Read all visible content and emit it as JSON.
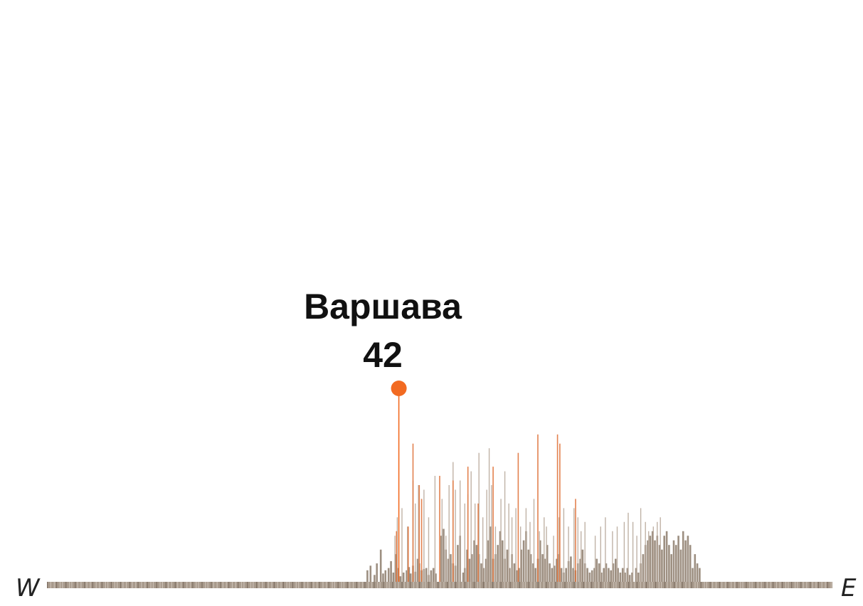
{
  "chart_data": {
    "type": "bar",
    "axis": {
      "left_label": "W",
      "right_label": "E"
    },
    "highlight": {
      "name": "Варшава",
      "value": "42",
      "value_number": 42
    },
    "colors": {
      "bar": "#8c7b6b",
      "bar_light": "#b9aa9c",
      "accent": "#e0743c",
      "highlight": "#f26a21",
      "baseline": "#a89a8c"
    },
    "ylim": [
      0,
      70
    ],
    "bars": [
      [
        0.408,
        2.5
      ],
      [
        0.412,
        3.5
      ],
      [
        0.417,
        1.5
      ],
      [
        0.42,
        4
      ],
      [
        0.425,
        7
      ],
      [
        0.428,
        1.8
      ],
      [
        0.431,
        2.5
      ],
      [
        0.435,
        3
      ],
      [
        0.438,
        4.5
      ],
      [
        0.441,
        2
      ],
      [
        0.444,
        6
      ],
      [
        0.447,
        3
      ],
      [
        0.45,
        1.2
      ],
      [
        0.454,
        2
      ],
      [
        0.458,
        2.5
      ],
      [
        0.461,
        3.2
      ],
      [
        0.463,
        1.8
      ],
      [
        0.466,
        3.5
      ],
      [
        0.469,
        2.2
      ],
      [
        0.472,
        5
      ],
      [
        0.474,
        4
      ],
      [
        0.477,
        2.5
      ],
      [
        0.48,
        2.8
      ],
      [
        0.483,
        3
      ],
      [
        0.486,
        1.5
      ],
      [
        0.489,
        2.5
      ],
      [
        0.492,
        3
      ],
      [
        0.495,
        1.8
      ],
      [
        0.502,
        10
      ],
      [
        0.505,
        11.5
      ],
      [
        0.508,
        7
      ],
      [
        0.511,
        5
      ],
      [
        0.514,
        6
      ],
      [
        0.517,
        4
      ],
      [
        0.52,
        3.5
      ],
      [
        0.523,
        8
      ],
      [
        0.526,
        10
      ],
      [
        0.53,
        2
      ],
      [
        0.532,
        3
      ],
      [
        0.535,
        7
      ],
      [
        0.538,
        5
      ],
      [
        0.541,
        6
      ],
      [
        0.544,
        9
      ],
      [
        0.547,
        8
      ],
      [
        0.55,
        6
      ],
      [
        0.553,
        4
      ],
      [
        0.556,
        3
      ],
      [
        0.559,
        5
      ],
      [
        0.562,
        9
      ],
      [
        0.565,
        12
      ],
      [
        0.568,
        5
      ],
      [
        0.571,
        6
      ],
      [
        0.574,
        8
      ],
      [
        0.577,
        11
      ],
      [
        0.58,
        9
      ],
      [
        0.583,
        5
      ],
      [
        0.586,
        7
      ],
      [
        0.589,
        3
      ],
      [
        0.592,
        6
      ],
      [
        0.595,
        4
      ],
      [
        0.598,
        2.5
      ],
      [
        0.601,
        3
      ],
      [
        0.604,
        7
      ],
      [
        0.607,
        9
      ],
      [
        0.61,
        11
      ],
      [
        0.613,
        7
      ],
      [
        0.616,
        6
      ],
      [
        0.619,
        4
      ],
      [
        0.622,
        3
      ],
      [
        0.625,
        5
      ],
      [
        0.628,
        9
      ],
      [
        0.631,
        6
      ],
      [
        0.634,
        5
      ],
      [
        0.637,
        8
      ],
      [
        0.64,
        4
      ],
      [
        0.643,
        3
      ],
      [
        0.646,
        3.5
      ],
      [
        0.649,
        5
      ],
      [
        0.652,
        6
      ],
      [
        0.655,
        3
      ],
      [
        0.658,
        2
      ],
      [
        0.661,
        3
      ],
      [
        0.664,
        4.5
      ],
      [
        0.667,
        5.5
      ],
      [
        0.67,
        3
      ],
      [
        0.673,
        2.5
      ],
      [
        0.676,
        4
      ],
      [
        0.679,
        5
      ],
      [
        0.682,
        7
      ],
      [
        0.685,
        4
      ],
      [
        0.688,
        3
      ],
      [
        0.691,
        2
      ],
      [
        0.694,
        2.5
      ],
      [
        0.697,
        3
      ],
      [
        0.7,
        5
      ],
      [
        0.703,
        4
      ],
      [
        0.706,
        2
      ],
      [
        0.709,
        3
      ],
      [
        0.712,
        4
      ],
      [
        0.715,
        3
      ],
      [
        0.718,
        2.5
      ],
      [
        0.721,
        4
      ],
      [
        0.724,
        5
      ],
      [
        0.727,
        3
      ],
      [
        0.73,
        2
      ],
      [
        0.733,
        3
      ],
      [
        0.736,
        2
      ],
      [
        0.739,
        3
      ],
      [
        0.742,
        1.5
      ],
      [
        0.745,
        2
      ],
      [
        0.75,
        3
      ],
      [
        0.753,
        2
      ],
      [
        0.756,
        4
      ],
      [
        0.759,
        6
      ],
      [
        0.762,
        8
      ],
      [
        0.765,
        9
      ],
      [
        0.768,
        10
      ],
      [
        0.771,
        11
      ],
      [
        0.774,
        9
      ],
      [
        0.777,
        10
      ],
      [
        0.78,
        8
      ],
      [
        0.783,
        7
      ],
      [
        0.786,
        10
      ],
      [
        0.789,
        11
      ],
      [
        0.792,
        8
      ],
      [
        0.795,
        6
      ],
      [
        0.798,
        9
      ],
      [
        0.801,
        8
      ],
      [
        0.804,
        10
      ],
      [
        0.807,
        7
      ],
      [
        0.81,
        11
      ],
      [
        0.813,
        9
      ],
      [
        0.816,
        10
      ],
      [
        0.819,
        8
      ],
      [
        0.822,
        3
      ],
      [
        0.825,
        6
      ],
      [
        0.828,
        4
      ],
      [
        0.831,
        3
      ]
    ],
    "tall_bars": [
      [
        0.443,
        10
      ],
      [
        0.446,
        14
      ],
      [
        0.452,
        16
      ],
      [
        0.459,
        12
      ],
      [
        0.466,
        22
      ],
      [
        0.469,
        17
      ],
      [
        0.473,
        21
      ],
      [
        0.48,
        20
      ],
      [
        0.486,
        14
      ],
      [
        0.494,
        23
      ],
      [
        0.503,
        18
      ],
      [
        0.508,
        10
      ],
      [
        0.512,
        21
      ],
      [
        0.517,
        26
      ],
      [
        0.52,
        20
      ],
      [
        0.526,
        22
      ],
      [
        0.532,
        17
      ],
      [
        0.536,
        19
      ],
      [
        0.54,
        24
      ],
      [
        0.545,
        17
      ],
      [
        0.55,
        28
      ],
      [
        0.555,
        14
      ],
      [
        0.56,
        20
      ],
      [
        0.563,
        29
      ],
      [
        0.566,
        21
      ],
      [
        0.571,
        12
      ],
      [
        0.578,
        18
      ],
      [
        0.583,
        24
      ],
      [
        0.588,
        17
      ],
      [
        0.592,
        14
      ],
      [
        0.597,
        16
      ],
      [
        0.603,
        12
      ],
      [
        0.61,
        16
      ],
      [
        0.615,
        13
      ],
      [
        0.62,
        18
      ],
      [
        0.627,
        11
      ],
      [
        0.633,
        14
      ],
      [
        0.636,
        12
      ],
      [
        0.645,
        10
      ],
      [
        0.652,
        14
      ],
      [
        0.658,
        16
      ],
      [
        0.664,
        12
      ],
      [
        0.671,
        16
      ],
      [
        0.676,
        14
      ],
      [
        0.68,
        11
      ],
      [
        0.685,
        13
      ],
      [
        0.698,
        10
      ],
      [
        0.705,
        12
      ],
      [
        0.711,
        14
      ],
      [
        0.72,
        11
      ],
      [
        0.726,
        12
      ],
      [
        0.735,
        13
      ],
      [
        0.74,
        15
      ],
      [
        0.746,
        13
      ],
      [
        0.751,
        10
      ],
      [
        0.756,
        16
      ],
      [
        0.762,
        13
      ],
      [
        0.766,
        11
      ],
      [
        0.772,
        12
      ],
      [
        0.777,
        13
      ],
      [
        0.781,
        14
      ]
    ],
    "accent_bars": [
      [
        0.445,
        11
      ],
      [
        0.46,
        12
      ],
      [
        0.466,
        30
      ],
      [
        0.474,
        21
      ],
      [
        0.477,
        18
      ],
      [
        0.5,
        23
      ],
      [
        0.517,
        22
      ],
      [
        0.536,
        25
      ],
      [
        0.549,
        17
      ],
      [
        0.568,
        25
      ],
      [
        0.6,
        28
      ],
      [
        0.625,
        32
      ],
      [
        0.65,
        32
      ],
      [
        0.653,
        30
      ],
      [
        0.673,
        18
      ]
    ],
    "highlight_bar": [
      0.448,
      42
    ]
  }
}
